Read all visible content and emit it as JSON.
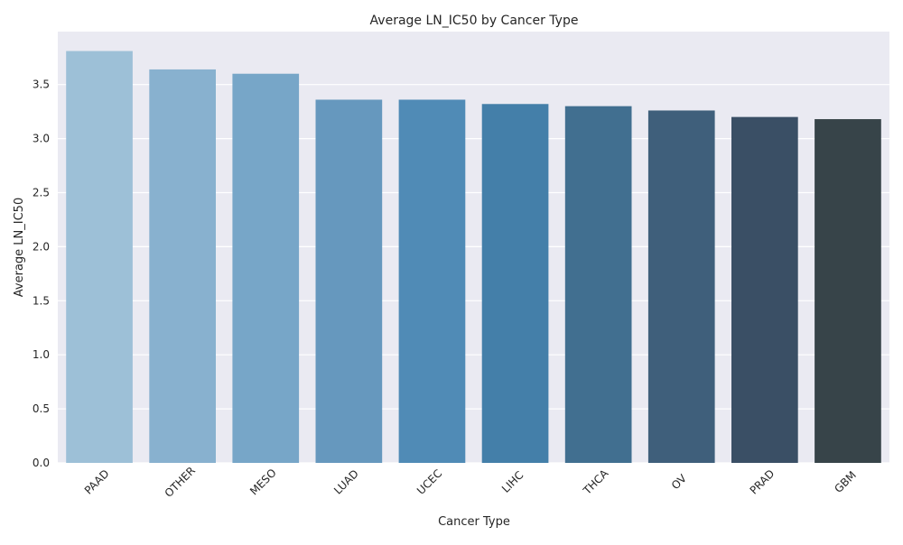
{
  "chart_data": {
    "type": "bar",
    "title": "Average LN_IC50 by Cancer Type",
    "xlabel": "Cancer Type",
    "ylabel": "Average LN_IC50",
    "categories": [
      "PAAD",
      "OTHER",
      "MESO",
      "LUAD",
      "UCEC",
      "LIHC",
      "THCA",
      "OV",
      "PRAD",
      "GBM"
    ],
    "values": [
      3.81,
      3.64,
      3.6,
      3.36,
      3.36,
      3.32,
      3.3,
      3.26,
      3.2,
      3.18
    ],
    "colors": [
      "#9dc0d7",
      "#88b1cf",
      "#77a6c8",
      "#6698be",
      "#508bb6",
      "#447fa9",
      "#416f90",
      "#3f5f7b",
      "#3a4f65",
      "#374449"
    ],
    "ylim": [
      0,
      3.99
    ],
    "yticks": [
      0.0,
      0.5,
      1.0,
      1.5,
      2.0,
      2.5,
      3.0,
      3.5
    ],
    "ytick_labels": [
      "0.0",
      "0.5",
      "1.0",
      "1.5",
      "2.0",
      "2.5",
      "3.0",
      "3.5"
    ],
    "grid": true,
    "background": "#eaeaf2",
    "grid_color": "#ffffff"
  }
}
